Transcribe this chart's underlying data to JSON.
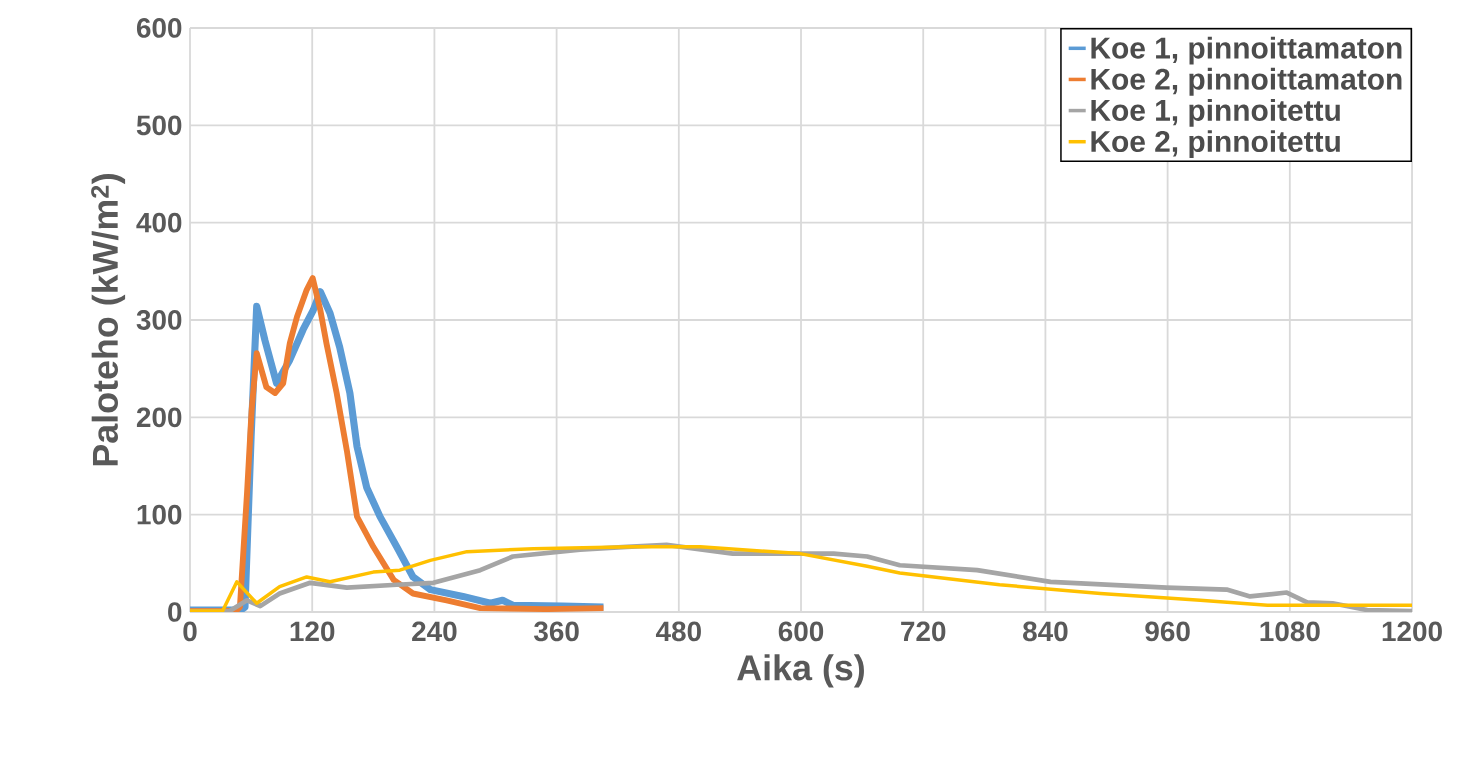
{
  "chart_data": {
    "type": "line",
    "xlabel": "Aika (s)",
    "ylabel": "Paloteho (kW/m$^{2}$)",
    "xlim": [
      0,
      1200
    ],
    "ylim": [
      0,
      600
    ],
    "xticks": [
      0,
      120,
      240,
      360,
      480,
      600,
      720,
      840,
      960,
      1080,
      1200
    ],
    "yticks": [
      0,
      100,
      200,
      300,
      400,
      500,
      600
    ],
    "grid": true,
    "legend": "top right",
    "marker": "none",
    "line_style": "solid",
    "series": [
      {
        "name": "Koe 1, pinnoittamaton",
        "color": "#5b9bd5",
        "x": [
          0,
          50,
          54,
          60,
          65.5,
          73.6,
          85,
          98,
          111,
          121,
          128,
          137.5,
          147,
          157,
          164,
          173.5,
          186.6,
          203,
          219,
          236,
          268,
          295,
          307,
          317,
          366,
          406
        ],
        "values": [
          2,
          2,
          5,
          180,
          314,
          279,
          235,
          259,
          290,
          310,
          329,
          307,
          272,
          225,
          170,
          128,
          98,
          67,
          36,
          23,
          16,
          9,
          12,
          7,
          6,
          5
        ]
      },
      {
        "name": "Koe 2, pinnoittamaton",
        "color": "#ed7d31",
        "x": [
          0,
          45,
          49,
          56,
          60.5,
          65.5,
          75,
          83.5,
          91.5,
          98,
          105,
          114.6,
          120.5,
          128,
          134,
          144,
          154,
          164,
          180,
          200,
          219,
          252,
          285,
          350,
          406
        ],
        "values": [
          1,
          1,
          5,
          122,
          207,
          266,
          231,
          225,
          235,
          276,
          303,
          331,
          343,
          310,
          276,
          225,
          166,
          98,
          67,
          33,
          19,
          12,
          4,
          3,
          4
        ]
      },
      {
        "name": "Koe 1, pinnoitettu",
        "color": "#a5a5a5",
        "x": [
          0,
          39,
          56,
          69,
          88,
          118,
          154,
          203,
          239,
          285,
          317,
          383,
          429,
          468,
          533,
          632,
          665,
          697,
          773,
          845,
          959,
          1018,
          1041,
          1077,
          1097,
          1122,
          1156,
          1200
        ],
        "values": [
          1,
          1,
          12,
          6,
          19,
          30,
          25,
          28,
          30,
          43,
          57,
          64,
          67,
          69,
          60,
          60,
          57,
          48,
          43,
          31,
          25,
          23,
          16,
          20,
          10,
          9,
          2,
          1
        ]
      },
      {
        "name": "Koe 2, pinnoitettu",
        "color": "#ffc000",
        "x": [
          0,
          32,
          46,
          65.5,
          88,
          114.6,
          137.5,
          180,
          206,
          236,
          272,
          337,
          435,
          501,
          599,
          665,
          697,
          795,
          894,
          992,
          1058,
          1122,
          1200
        ],
        "values": [
          1,
          1,
          31,
          9,
          26,
          36,
          31,
          41,
          43,
          53,
          62,
          65,
          67,
          67,
          60,
          47,
          40,
          28,
          19,
          12,
          7,
          7,
          7
        ]
      }
    ]
  }
}
